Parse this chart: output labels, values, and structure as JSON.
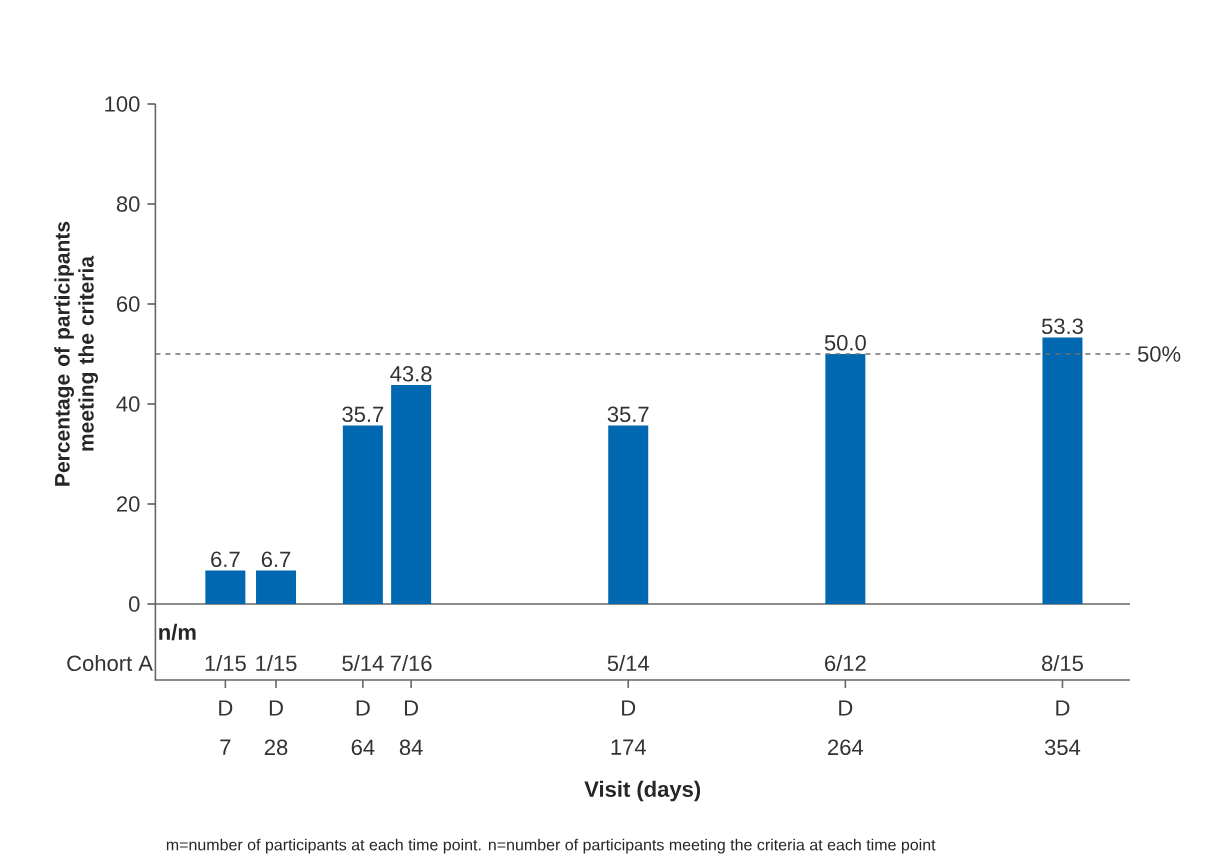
{
  "chart_data": {
    "type": "bar",
    "ylabel": "Percentage of participants meeting the criteria",
    "xlabel": "Visit (days)",
    "x": [
      7,
      28,
      64,
      84,
      174,
      264,
      354
    ],
    "values": [
      6.7,
      6.7,
      35.7,
      43.8,
      35.7,
      50.0,
      53.3
    ],
    "value_labels": [
      "6.7",
      "6.7",
      "35.7",
      "43.8",
      "35.7",
      "50.0",
      "53.3"
    ],
    "color": "#0068b1",
    "xlim": [
      -22,
      382
    ],
    "xticks": [
      7,
      28,
      64,
      84,
      174,
      264,
      354
    ],
    "ylim": [
      0,
      100
    ],
    "yticks": [
      0,
      20,
      40,
      60,
      80,
      100
    ],
    "ref_lines": [
      {
        "axis": "y",
        "value": 50,
        "label": "50%",
        "color": "#707070",
        "line_style": "dashed"
      }
    ],
    "annotations": [
      "n/m",
      "Cohort A",
      "1/15",
      "1/15",
      "5/14",
      "7/16",
      "5/14",
      "6/12",
      "8/15",
      "D",
      "D",
      "D",
      "D",
      "D",
      "D",
      "D",
      "m=number of participants at each time point. n=number of participants meeting the criteria at each time point"
    ],
    "grid": false
  }
}
